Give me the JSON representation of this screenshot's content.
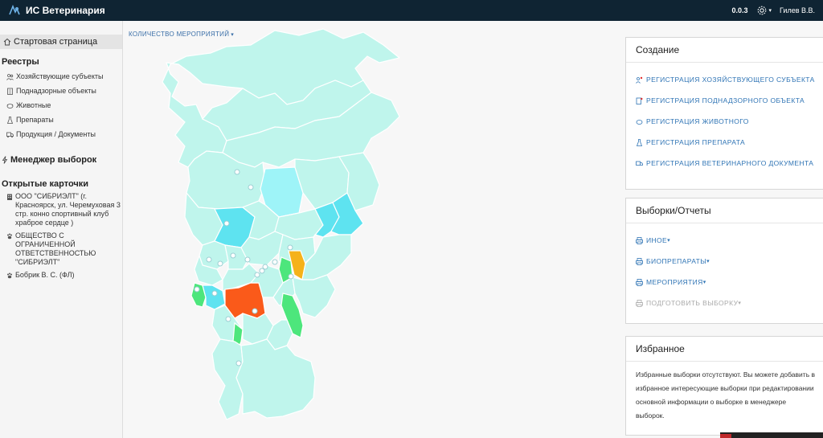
{
  "app": {
    "title": "ИС Ветеринария",
    "version": "0.0.3",
    "user": "Гилев В.В."
  },
  "sidebar": {
    "home": "Стартовая страница",
    "registries_title": "Реестры",
    "registries": [
      {
        "label": "Хозяйствующие субъекты",
        "icon": "org-icon"
      },
      {
        "label": "Поднадзорные объекты",
        "icon": "object-icon"
      },
      {
        "label": "Животные",
        "icon": "animal-icon"
      },
      {
        "label": "Препараты",
        "icon": "drug-icon"
      },
      {
        "label": "Продукция / Документы",
        "icon": "truck-icon"
      }
    ],
    "selection_manager": "Менеджер выборок",
    "open_cards_title": "Открытые карточки",
    "open_cards": [
      {
        "label": "ООО \"СИБРИЭЛТ\" (г. Красноярск, ул. Черемуховая 3 стр. конно спортивный клуб храброе сердце )",
        "icon": "building-icon"
      },
      {
        "label": "ОБЩЕСТВО С ОГРАНИЧЕННОЙ ОТВЕТСТВЕННОСТЬЮ \"СИБРИЭЛТ\"",
        "icon": "paw-icon"
      },
      {
        "label": "Бобрик В. С. (ФЛ)",
        "icon": "paw-icon"
      }
    ]
  },
  "map": {
    "selector": "КОЛИЧЕСТВО МЕРОПРИЯТИЙ",
    "colors": {
      "base": "#bff5ec",
      "light": "#9ef4f8",
      "mid": "#5ee3f0",
      "green": "#4de67c",
      "orange": "#f5b21a",
      "red": "#fa5a1a"
    }
  },
  "panels": {
    "create": {
      "title": "Создание",
      "links": [
        "РЕГИСТРАЦИЯ ХОЗЯЙСТВУЮЩЕГО СУБЪЕКТА",
        "РЕГИСТРАЦИЯ ПОДНАДЗОРНОГО ОБЪЕКТА",
        "РЕГИСТРАЦИЯ ЖИВОТНОГО",
        "РЕГИСТРАЦИЯ ПРЕПАРАТА",
        "РЕГИСТРАЦИЯ ВЕТЕРИНАРНОГО ДОКУМЕНТА"
      ]
    },
    "reports": {
      "title": "Выборки/Отчеты",
      "links": [
        "ИНОЕ",
        "БИОПРЕПАРАТЫ",
        "МЕРОПРИЯТИЯ",
        "ПОДГОТОВИТЬ ВЫБОРКУ"
      ]
    },
    "favorites": {
      "title": "Избранное",
      "text": "Избранные выборки отсутствуют. Вы можете добавить в избранное интересующие выборки при редактировании основной информации о выборке в менеджере выборок."
    }
  }
}
